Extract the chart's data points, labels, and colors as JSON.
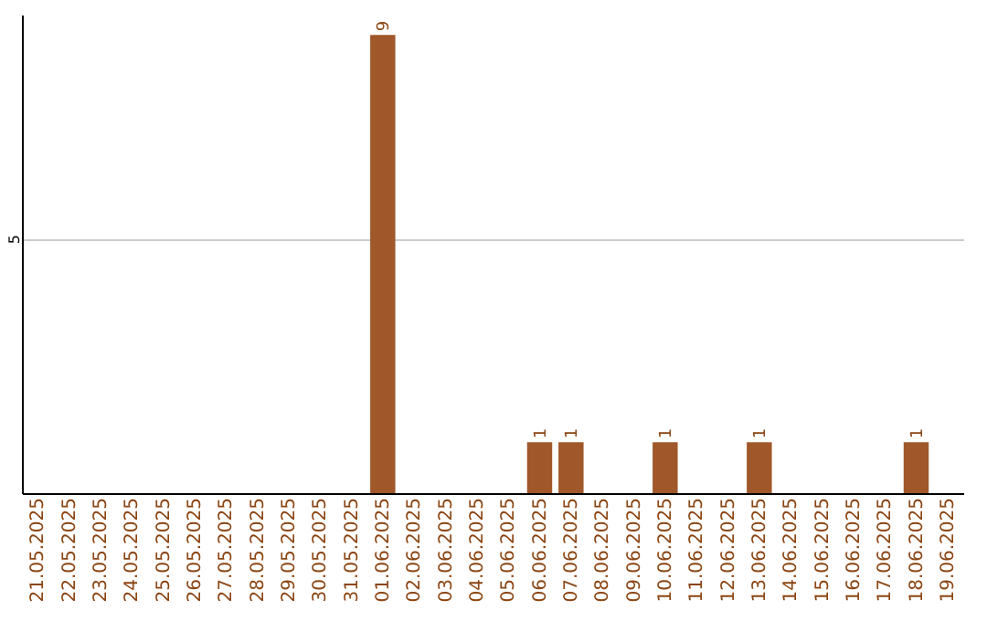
{
  "chart_data": {
    "type": "bar",
    "categories": [
      "21.05.2025",
      "22.05.2025",
      "23.05.2025",
      "24.05.2025",
      "25.05.2025",
      "26.05.2025",
      "27.05.2025",
      "28.05.2025",
      "29.05.2025",
      "30.05.2025",
      "31.05.2025",
      "01.06.2025",
      "02.06.2025",
      "03.06.2025",
      "04.06.2025",
      "05.06.2025",
      "06.06.2025",
      "07.06.2025",
      "08.06.2025",
      "09.06.2025",
      "10.06.2025",
      "11.06.2025",
      "12.06.2025",
      "13.06.2025",
      "14.06.2025",
      "15.06.2025",
      "16.06.2025",
      "17.06.2025",
      "18.06.2025",
      "19.06.2025"
    ],
    "values": [
      0,
      0,
      0,
      0,
      0,
      0,
      0,
      0,
      0,
      0,
      0,
      9,
      0,
      0,
      0,
      0,
      1,
      1,
      0,
      0,
      1,
      0,
      0,
      1,
      0,
      0,
      0,
      0,
      1,
      0
    ],
    "value_labels": [
      null,
      null,
      null,
      null,
      null,
      null,
      null,
      null,
      null,
      null,
      null,
      "9",
      null,
      null,
      null,
      null,
      "1",
      "1",
      null,
      null,
      "1",
      null,
      null,
      "1",
      null,
      null,
      null,
      null,
      "1",
      null
    ],
    "color": "#a0572a",
    "ylim": [
      0,
      9.4
    ],
    "yticks": [
      5
    ],
    "grid": "y"
  }
}
